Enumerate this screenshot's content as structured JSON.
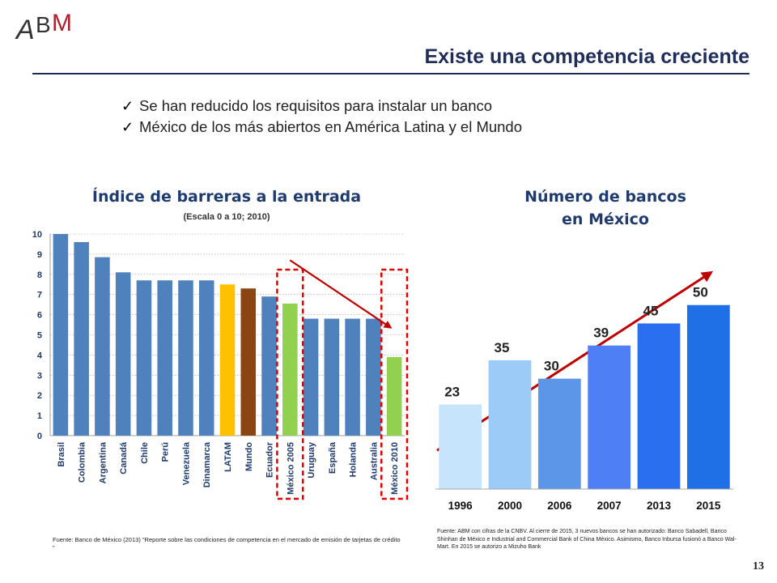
{
  "logo_text": "ABM",
  "title": "Existe una competencia creciente",
  "bullets": [
    "Se han reducido los requisitos para instalar un banco",
    "México de los más abiertos en América Latina y el Mundo"
  ],
  "chart_data": [
    {
      "type": "bar",
      "title": "Índice de barreras a la entrada",
      "subtitle": "(Escala 0 a 10; 2010)",
      "categories": [
        "Brasil",
        "Colombia",
        "Argentina",
        "Canadá",
        "Chile",
        "Perú",
        "Venezuela",
        "Dinamarca",
        "LATAM",
        "Mundo",
        "Ecuador",
        "México 2005",
        "Uruguay",
        "España",
        "Holanda",
        "Australia",
        "México 2010"
      ],
      "values": [
        10,
        9.6,
        8.85,
        8.1,
        7.7,
        7.7,
        7.7,
        7.7,
        7.5,
        7.3,
        6.9,
        6.55,
        5.8,
        5.8,
        5.8,
        5.8,
        3.9
      ],
      "colors": [
        "#4f81bd",
        "#4f81bd",
        "#4f81bd",
        "#4f81bd",
        "#4f81bd",
        "#4f81bd",
        "#4f81bd",
        "#4f81bd",
        "#ffc000",
        "#8b4513",
        "#4f81bd",
        "#92d050",
        "#4f81bd",
        "#4f81bd",
        "#4f81bd",
        "#4f81bd",
        "#92d050"
      ],
      "highlighted": [
        "México 2005",
        "México 2010"
      ],
      "yticks": [
        0,
        1,
        2,
        3,
        4,
        5,
        6,
        7,
        8,
        9,
        10
      ],
      "ylim": [
        0,
        10
      ],
      "grid": true,
      "source": "Fuente: Banco de México (2013) \"Reporte sobre las condiciones de competencia en el mercado de emisión de tarjetas de crédito \""
    },
    {
      "type": "bar",
      "title_lines": [
        "Número de bancos",
        "en México"
      ],
      "categories": [
        "1996",
        "2000",
        "2006",
        "2007",
        "2013",
        "2015"
      ],
      "values": [
        23,
        35,
        30,
        39,
        45,
        50
      ],
      "colors": [
        "#c6e4fb",
        "#9ccbf8",
        "#5b96e8",
        "#4f7ff5",
        "#2a6ff0",
        "#1f6fe6"
      ],
      "ylim": [
        0,
        55
      ],
      "trend": "increasing",
      "source": "Fuente: ABM con cifras de la CNBV. Al cierre de 2015, 3 nuevos bancos se han autorizado: Banco Sabadell, Banco Shinhan de México e Industrial and Commercial Bank of China México. Asimismo, Banco Inbursa fusionó a Banco Wal-Mart. En 2015 se autorizo a Mizuho Bank"
    }
  ],
  "colors": {
    "title": "#1f2d5a",
    "chart_title": "#1f3b6e",
    "highlight_box": "#e00000",
    "arrow": "#c00000"
  },
  "page_number": "13"
}
